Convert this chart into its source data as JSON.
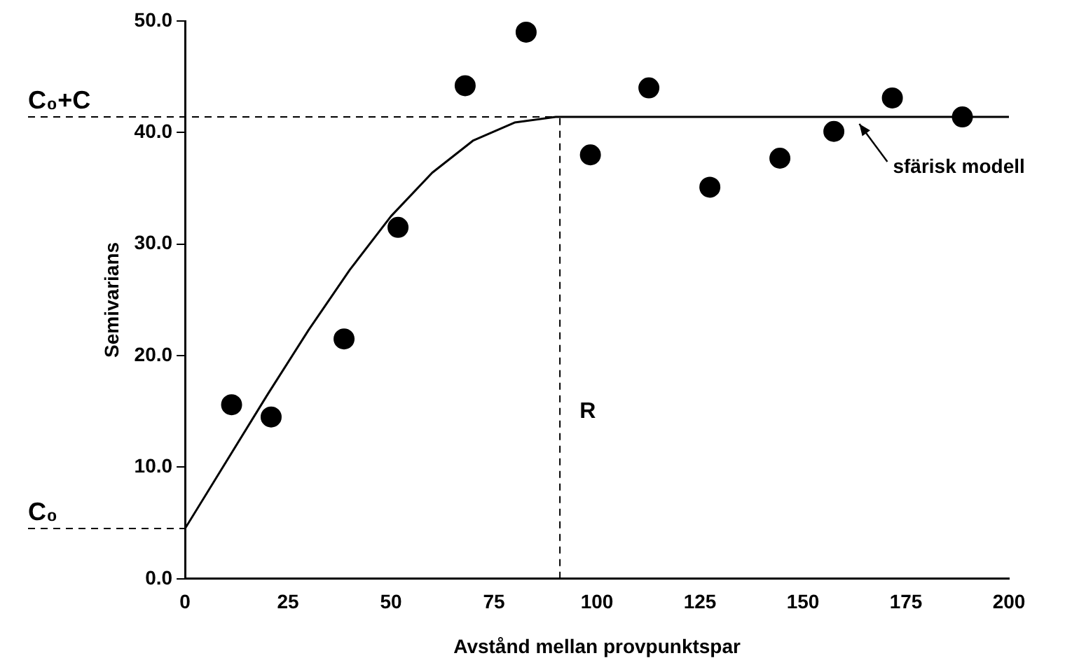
{
  "chart_data": {
    "type": "scatter",
    "xlabel": "Avstånd mellan provpunktspar",
    "ylabel": "Semivarians",
    "xlim": [
      0,
      200
    ],
    "xticks": [
      0,
      25,
      50,
      75,
      100,
      125,
      150,
      175,
      200
    ],
    "ylim": [
      0,
      50
    ],
    "yticks": [
      {
        "value": 0,
        "label": "0.0"
      },
      {
        "value": 10,
        "label": "10.0"
      },
      {
        "value": 20,
        "label": "20.0"
      },
      {
        "value": 30,
        "label": "30.0"
      },
      {
        "value": 40,
        "label": "40.0"
      },
      {
        "value": 50,
        "label": "50.0"
      }
    ],
    "grid": false,
    "legend": false,
    "marker": "circle",
    "series": [
      {
        "type": "scatter",
        "color": "#000000",
        "x": [
          11.3,
          20.9,
          38.6,
          51.7,
          68.0,
          82.8,
          98.4,
          112.6,
          127.4,
          144.4,
          157.5,
          171.7,
          188.7
        ],
        "values": [
          15.6,
          14.5,
          21.5,
          31.5,
          44.2,
          49.0,
          38.0,
          44.0,
          35.1,
          37.7,
          40.1,
          43.1,
          41.4
        ]
      },
      {
        "type": "line",
        "color": "#000000",
        "marker": "none",
        "line_style": "solid",
        "x": [
          0,
          10,
          20,
          30,
          40,
          50,
          60,
          70,
          80,
          90,
          200
        ],
        "values": [
          4.5,
          10.5,
          16.5,
          22.3,
          27.7,
          32.5,
          36.4,
          39.3,
          40.9,
          41.4,
          41.4
        ]
      }
    ],
    "ref_lines": [
      {
        "axis": "y",
        "value": 41.4,
        "label": "C₀+C",
        "line_style": "dashed"
      },
      {
        "axis": "y",
        "value": 4.5,
        "label": "C₀",
        "line_style": "dashed"
      },
      {
        "axis": "x",
        "value": 91,
        "label": "R",
        "line_style": "dashed"
      }
    ],
    "annotations": [
      {
        "text": "sfärisk modell",
        "x": 163,
        "y": 41.4
      }
    ]
  }
}
